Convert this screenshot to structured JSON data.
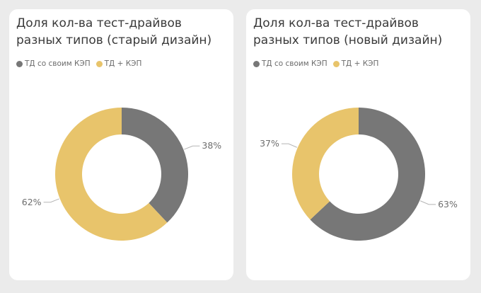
{
  "chart_data": [
    {
      "type": "donut",
      "title": "Доля кол-ва тест-драйвов разных типов (старый дизайн)",
      "legend_position": "top-left",
      "categories": [
        "ТД со своим КЭП",
        "ТД + КЭП"
      ],
      "values": [
        38,
        62
      ],
      "labels": [
        "38%",
        "62%"
      ],
      "colors": [
        "#777777",
        "#e8c46b"
      ]
    },
    {
      "type": "donut",
      "title": "Доля кол-ва тест-драйвов разных типов (новый дизайн)",
      "legend_position": "top-left",
      "categories": [
        "ТД со своим КЭП",
        "ТД + КЭП"
      ],
      "values": [
        63,
        37
      ],
      "labels": [
        "63%",
        "37%"
      ],
      "colors": [
        "#777777",
        "#e8c46b"
      ]
    }
  ]
}
